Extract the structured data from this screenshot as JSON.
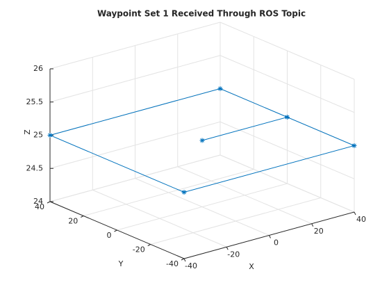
{
  "chart_data": {
    "type": "line3d",
    "title": "Waypoint Set 1 Received Through ROS Topic",
    "xlabel": "X",
    "ylabel": "Y",
    "zlabel": "Z",
    "series": [
      {
        "color": "#0072bd",
        "marker": "*",
        "x": [
          0,
          40,
          40,
          -40,
          -40,
          40,
          40
        ],
        "y": [
          0,
          0,
          -40,
          -40,
          40,
          40,
          0
        ],
        "z": [
          25,
          25,
          25,
          25,
          25,
          25,
          25
        ]
      }
    ],
    "xlim": [
      -40,
      40
    ],
    "xticks": [
      -40,
      -20,
      0,
      20,
      40
    ],
    "ylim": [
      -40,
      40
    ],
    "yticks": [
      -40,
      -20,
      0,
      20,
      40
    ],
    "zlim": [
      24,
      26
    ],
    "zticks": [
      24,
      24.5,
      25,
      25.5,
      26
    ],
    "grid": true
  }
}
